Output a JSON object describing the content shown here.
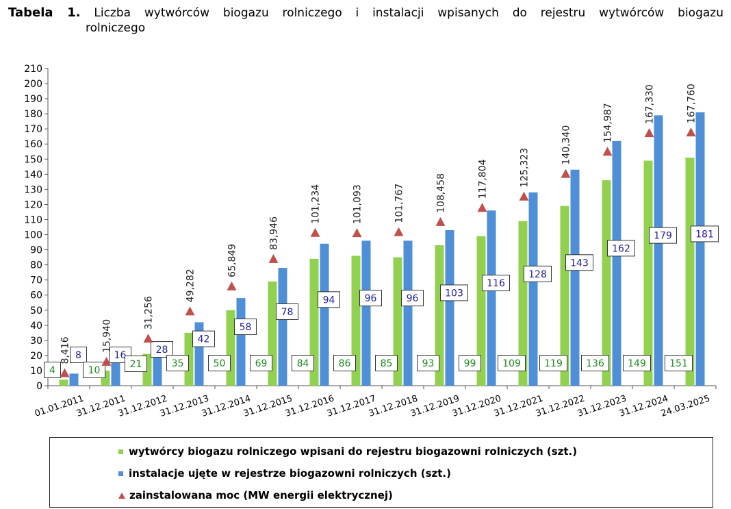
{
  "title": {
    "label": "Tabela 1.",
    "line1": "Liczba wytwórców biogazu rolniczego i instalacji wpisanych do rejestru wytwórców biogazu",
    "line2": "rolniczego"
  },
  "colors": {
    "producers": "#92d050",
    "installations": "#4f8fd7",
    "power": "#c0504d",
    "producers_text": "#1e8a1e",
    "installations_text": "#2020a0"
  },
  "chart_data": {
    "type": "bar",
    "categories": [
      "01.01.2011",
      "31.12.2011",
      "31.12.2012",
      "31.12.2013",
      "31.12.2014",
      "31.12.2015",
      "31.12.2016",
      "31.12.2017",
      "31.12.2018",
      "31.12.2019",
      "31.12.2020",
      "31.12.2021",
      "31.12.2022",
      "31.12.2023",
      "31.12.2024",
      "24.03.2025"
    ],
    "series": [
      {
        "name": "wytwórcy biogazu rolniczego wpisani do rejestru biogazowni rolniczych (szt.)",
        "type": "bar",
        "values": [
          4,
          10,
          21,
          35,
          50,
          69,
          84,
          86,
          85,
          93,
          99,
          109,
          119,
          136,
          149,
          151
        ]
      },
      {
        "name": "instalacje ujęte w rejestrze biogazowni rolniczych (szt.)",
        "type": "bar",
        "values": [
          8,
          16,
          28,
          42,
          58,
          78,
          94,
          96,
          96,
          103,
          116,
          128,
          143,
          162,
          179,
          181
        ]
      },
      {
        "name": "zainstalowana moc (MW energii elektrycznej)",
        "type": "marker",
        "values": [
          8.416,
          15.94,
          31.256,
          49.282,
          65.849,
          83.946,
          101.234,
          101.093,
          101.767,
          108.458,
          117.804,
          125.323,
          140.34,
          154.987,
          167.33,
          167.76
        ],
        "labels": [
          "8,416",
          "15,940",
          "31,256",
          "49,282",
          "65,849",
          "83,946",
          "101,234",
          "101,093",
          "101,767",
          "108,458",
          "117,804",
          "125,323",
          "140,340",
          "154,987",
          "167,330",
          "167,760"
        ]
      }
    ],
    "ylim": [
      0,
      210
    ],
    "yticks": [
      0,
      10,
      20,
      30,
      40,
      50,
      60,
      70,
      80,
      90,
      100,
      110,
      120,
      130,
      140,
      150,
      160,
      170,
      180,
      190,
      200,
      210
    ],
    "grid": false,
    "legend_position": "bottom"
  }
}
